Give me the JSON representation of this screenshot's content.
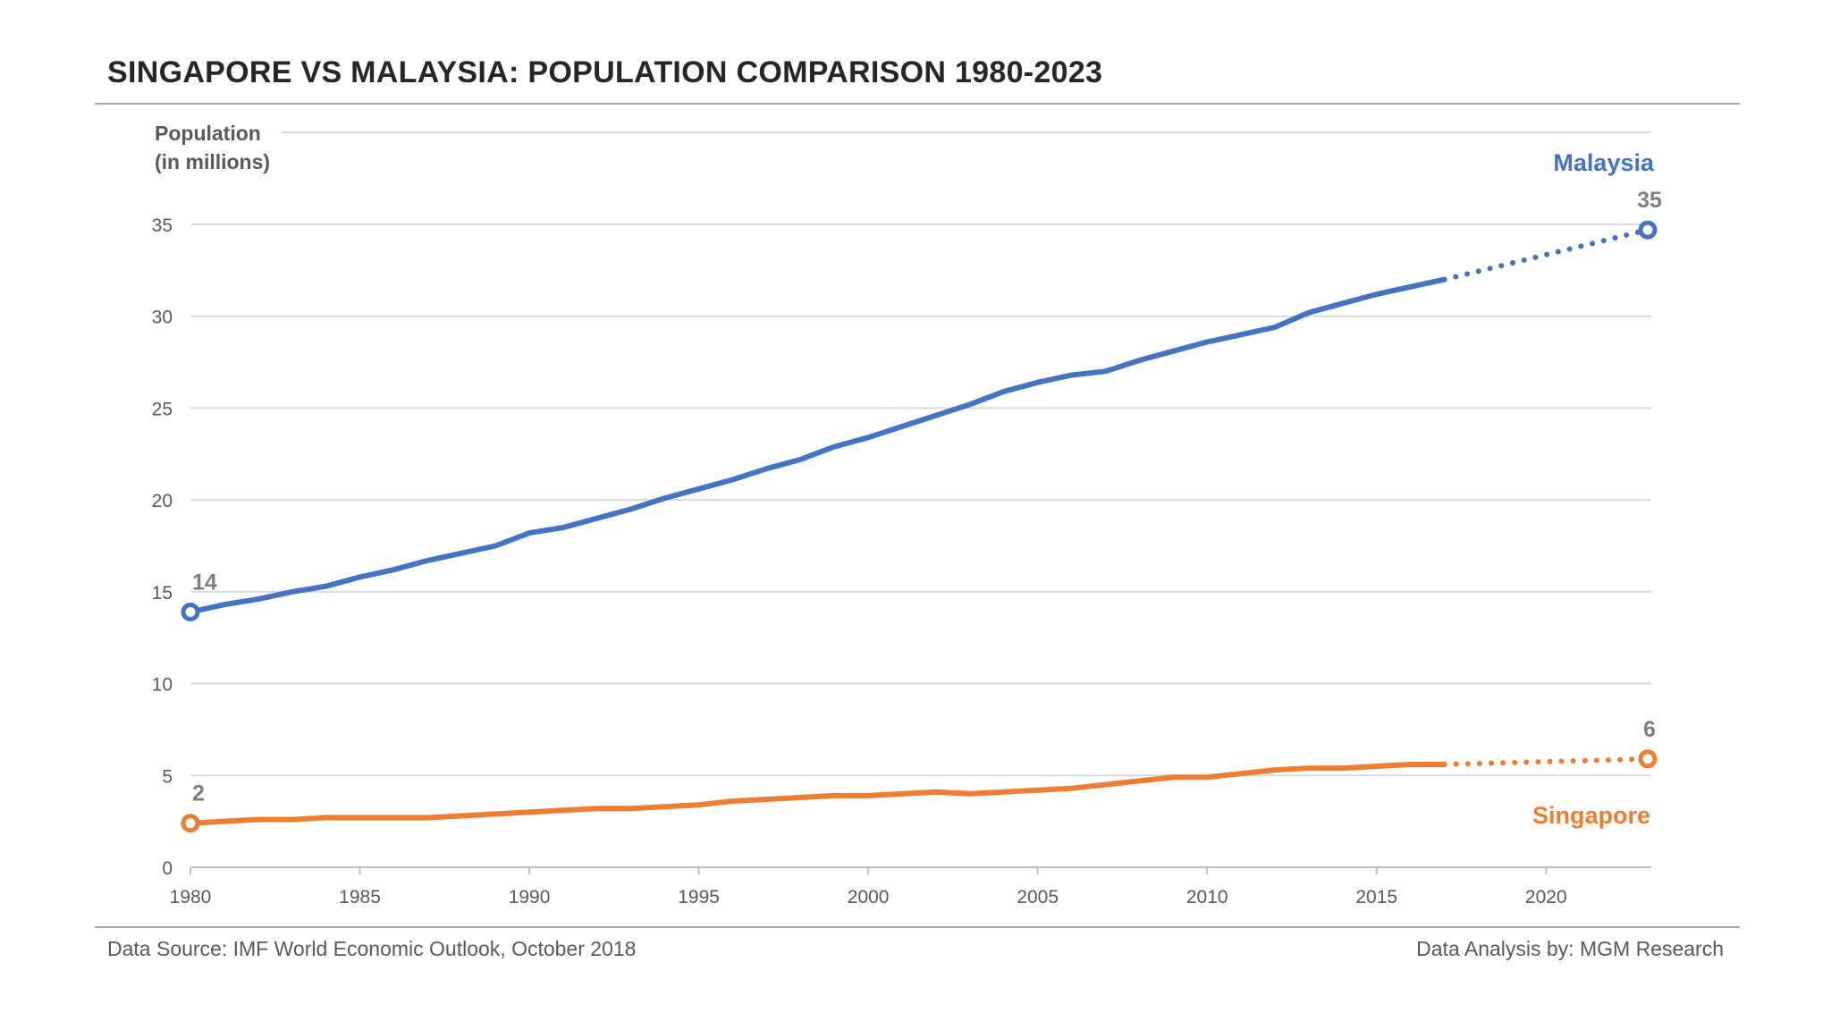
{
  "title": "SINGAPORE VS MALAYSIA: POPULATION COMPARISON 1980-2023",
  "footer": {
    "source": "Data Source: IMF World Economic Outlook, October 2018",
    "analysis": "Data Analysis by: MGM Research"
  },
  "colors": {
    "malaysia": "#4472C4",
    "singapore": "#ED7D31",
    "grid": "#d9d9d9",
    "axis_text": "#595959",
    "value_label": "#7f7f7f"
  },
  "chart_data": {
    "type": "line",
    "title": "SINGAPORE VS MALAYSIA: POPULATION COMPARISON 1980-2023",
    "ylabel_lines": [
      "Population",
      "(in millions)"
    ],
    "xlabel": "",
    "xlim": [
      1980,
      2023
    ],
    "ylim": [
      0,
      35
    ],
    "yticks": [
      0,
      5,
      10,
      15,
      20,
      25,
      30,
      35
    ],
    "xticks": [
      1980,
      1985,
      1990,
      1995,
      2000,
      2005,
      2010,
      2015,
      2020
    ],
    "grid": true,
    "legend": "inline labels",
    "x": [
      1980,
      1981,
      1982,
      1983,
      1984,
      1985,
      1986,
      1987,
      1988,
      1989,
      1990,
      1991,
      1992,
      1993,
      1994,
      1995,
      1996,
      1997,
      1998,
      1999,
      2000,
      2001,
      2002,
      2003,
      2004,
      2005,
      2006,
      2007,
      2008,
      2009,
      2010,
      2011,
      2012,
      2013,
      2014,
      2015,
      2016,
      2017
    ],
    "series": [
      {
        "name": "Malaysia",
        "color": "#4472C4",
        "values": [
          13.9,
          14.3,
          14.6,
          15.0,
          15.3,
          15.8,
          16.2,
          16.7,
          17.1,
          17.5,
          18.2,
          18.5,
          19.0,
          19.5,
          20.1,
          20.6,
          21.1,
          21.7,
          22.2,
          22.9,
          23.4,
          24.0,
          24.6,
          25.2,
          25.9,
          26.4,
          26.8,
          27.0,
          27.6,
          28.1,
          28.6,
          29.0,
          29.4,
          30.2,
          30.7,
          31.2,
          31.6,
          32.0
        ],
        "projection": {
          "from": [
            2017,
            32.0
          ],
          "to": [
            2023,
            34.7
          ]
        },
        "start_label": "14",
        "end_label": "35"
      },
      {
        "name": "Singapore",
        "color": "#ED7D31",
        "values": [
          2.4,
          2.5,
          2.6,
          2.6,
          2.7,
          2.7,
          2.7,
          2.7,
          2.8,
          2.9,
          3.0,
          3.1,
          3.2,
          3.2,
          3.3,
          3.4,
          3.6,
          3.7,
          3.8,
          3.9,
          3.9,
          4.0,
          4.1,
          4.0,
          4.1,
          4.2,
          4.3,
          4.5,
          4.7,
          4.9,
          4.9,
          5.1,
          5.3,
          5.4,
          5.4,
          5.5,
          5.6,
          5.6
        ],
        "projection": {
          "from": [
            2017,
            5.6
          ],
          "to": [
            2023,
            5.9
          ]
        },
        "start_label": "2",
        "end_label": "6"
      }
    ]
  }
}
